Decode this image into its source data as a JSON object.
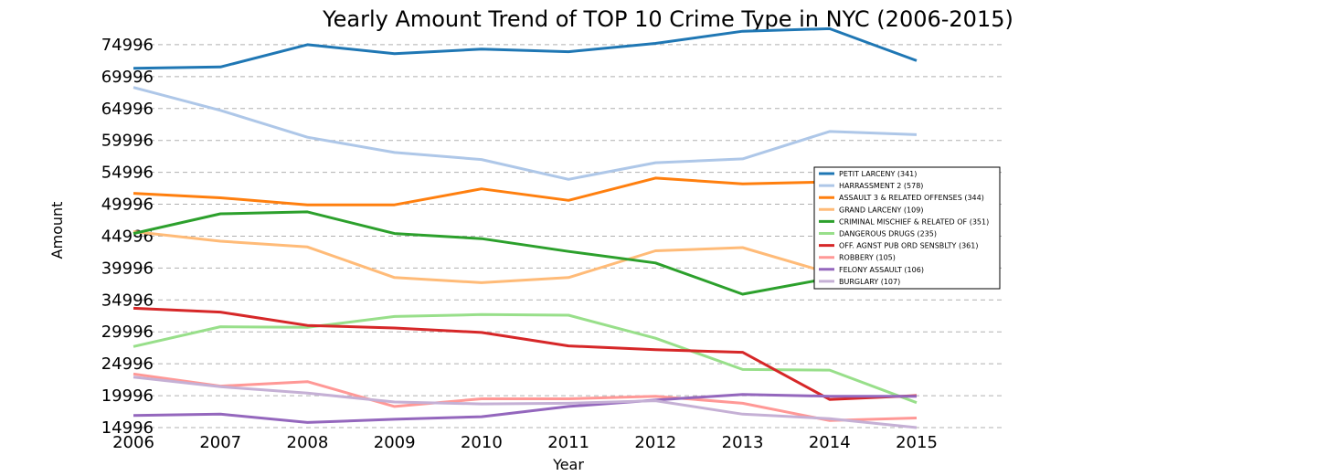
{
  "chart_data": {
    "type": "line",
    "title": "Yearly Amount Trend of TOP 10 Crime Type in NYC (2006-2015)",
    "xlabel": "Year",
    "ylabel": "Amount",
    "x": [
      2006,
      2007,
      2008,
      2009,
      2010,
      2011,
      2012,
      2013,
      2014,
      2015
    ],
    "xlim": [
      2006,
      2017.5
    ],
    "ylim": [
      14996,
      79996
    ],
    "yticks": [
      14996,
      19996,
      24996,
      29996,
      34996,
      39996,
      44996,
      49996,
      54996,
      59996,
      64996,
      69996,
      74996
    ],
    "grid": "horizontal dashed",
    "legend_position": "right",
    "series": [
      {
        "name": "PETIT LARCENY (341)",
        "color": "#1f77b4",
        "values": [
          71300,
          71500,
          75000,
          73600,
          74300,
          73900,
          75200,
          77100,
          77500,
          72500
        ]
      },
      {
        "name": "HARRASSMENT 2 (578)",
        "color": "#aec7e8",
        "values": [
          68300,
          64700,
          60500,
          58100,
          57000,
          53900,
          56500,
          57100,
          61400,
          60900
        ]
      },
      {
        "name": "ASSAULT 3 & RELATED OFFENSES (344)",
        "color": "#ff7f0e",
        "values": [
          51700,
          51000,
          49900,
          49900,
          52400,
          50600,
          54100,
          53200,
          53500,
          52800
        ]
      },
      {
        "name": "GRAND LARCENY (109)",
        "color": "#ffbb78",
        "values": [
          45700,
          44200,
          43300,
          38500,
          37700,
          38500,
          42700,
          43200,
          39200,
          38600
        ]
      },
      {
        "name": "CRIMINAL MISCHIEF & RELATED OF (351)",
        "color": "#2ca02c",
        "values": [
          45400,
          48500,
          48800,
          45400,
          44600,
          42600,
          40800,
          35900,
          38400,
          37800
        ]
      },
      {
        "name": "DANGEROUS DRUGS (235)",
        "color": "#98df8a",
        "values": [
          27700,
          30800,
          30700,
          32400,
          32700,
          32600,
          29000,
          24100,
          24000,
          18900
        ]
      },
      {
        "name": "OFF. AGNST PUB ORD SENSBLTY (361)",
        "color": "#d62728",
        "values": [
          33700,
          33100,
          31000,
          30600,
          29900,
          27800,
          27200,
          26800,
          19400,
          20000
        ]
      },
      {
        "name": "ROBBERY (105)",
        "color": "#ff9896",
        "values": [
          23400,
          21500,
          22200,
          18300,
          19500,
          19500,
          19900,
          18800,
          16100,
          16500
        ]
      },
      {
        "name": "FELONY ASSAULT (106)",
        "color": "#9467bd",
        "values": [
          16900,
          17100,
          15800,
          16300,
          16700,
          18300,
          19300,
          20200,
          19900,
          19900
        ]
      },
      {
        "name": "BURGLARY (107)",
        "color": "#c5b0d5",
        "values": [
          22900,
          21400,
          20400,
          19000,
          18700,
          18800,
          19200,
          17100,
          16400,
          14996
        ]
      }
    ]
  }
}
